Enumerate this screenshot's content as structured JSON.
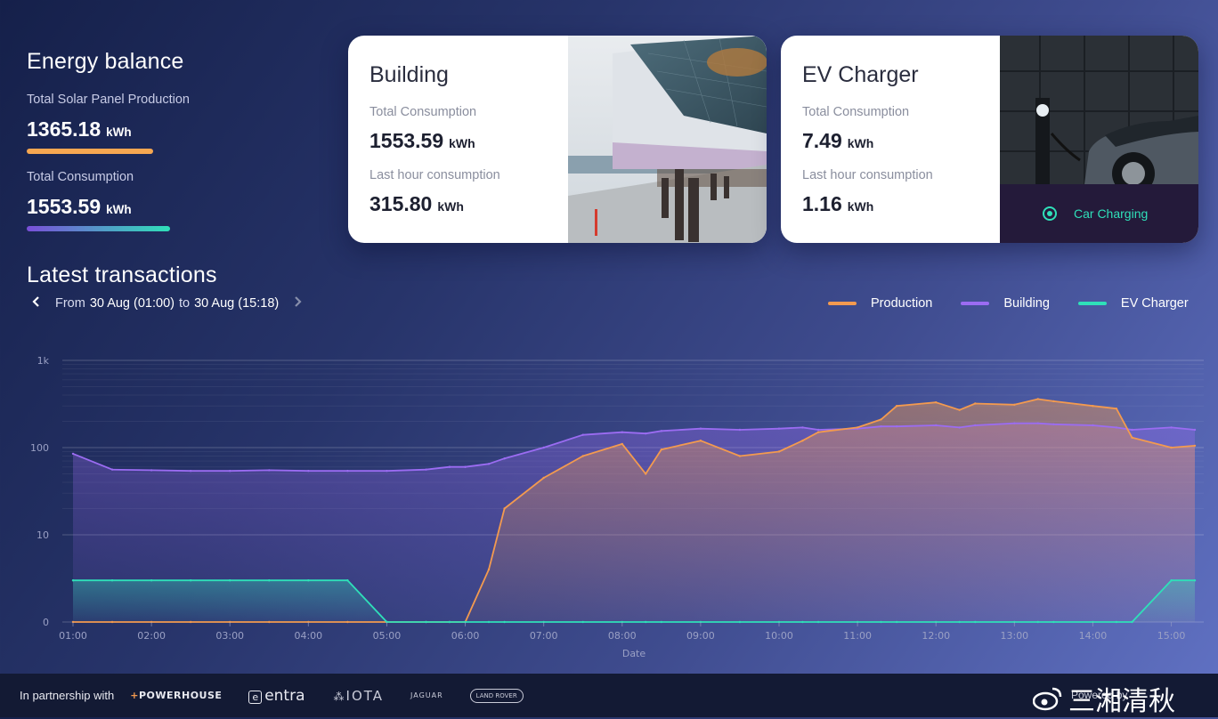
{
  "balance": {
    "title": "Energy balance",
    "production_label": "Total Solar Panel Production",
    "production_value": "1365.18",
    "production_unit": "kWh",
    "consumption_label": "Total Consumption",
    "consumption_value": "1553.59",
    "consumption_unit": "kWh"
  },
  "building_card": {
    "title": "Building",
    "total_label": "Total Consumption",
    "total_value": "1553.59",
    "total_unit": "kWh",
    "hour_label": "Last hour consumption",
    "hour_value": "315.80",
    "hour_unit": "kWh"
  },
  "ev_card": {
    "title": "EV Charger",
    "total_label": "Total Consumption",
    "total_value": "7.49",
    "total_unit": "kWh",
    "hour_label": "Last hour consumption",
    "hour_value": "1.16",
    "hour_unit": "kWh",
    "status": "Car Charging"
  },
  "transactions": {
    "title": "Latest transactions",
    "range_prefix": "From",
    "range_from": "30 Aug (01:00)",
    "range_mid": "to",
    "range_to": "30 Aug (15:18)"
  },
  "legend": [
    {
      "name": "Production",
      "color": "#f39a4f"
    },
    {
      "name": "Building",
      "color": "#9b6cf2"
    },
    {
      "name": "EV Charger",
      "color": "#2fe0b9"
    }
  ],
  "chart_data": {
    "type": "line",
    "xlabel": "Date",
    "y_scale": "log",
    "yticks": [
      "1k",
      "100",
      "10",
      "0"
    ],
    "xticks": [
      "01:00",
      "02:00",
      "03:00",
      "04:00",
      "05:00",
      "06:00",
      "07:00",
      "08:00",
      "09:00",
      "10:00",
      "11:00",
      "12:00",
      "13:00",
      "14:00",
      "15:00"
    ],
    "x_hours": [
      1,
      1.5,
      2,
      2.5,
      3,
      3.5,
      4,
      4.5,
      5,
      5.5,
      5.8,
      6,
      6.3,
      6.5,
      7,
      7.5,
      8,
      8.3,
      8.5,
      9,
      9.5,
      10,
      10.3,
      10.5,
      11,
      11.3,
      11.5,
      12,
      12.3,
      12.5,
      13,
      13.3,
      13.5,
      14,
      14.3,
      14.5,
      15,
      15.3
    ],
    "series": [
      {
        "name": "Production",
        "values": [
          0,
          0,
          0,
          0,
          0,
          0,
          0,
          0,
          0,
          0,
          0,
          0.2,
          4,
          20,
          45,
          80,
          110,
          50,
          95,
          120,
          80,
          90,
          120,
          150,
          170,
          210,
          300,
          330,
          270,
          320,
          310,
          360,
          340,
          300,
          280,
          130,
          100,
          105
        ]
      },
      {
        "name": "Building",
        "values": [
          85,
          56,
          55,
          54,
          54,
          55,
          54,
          54,
          54,
          56,
          60,
          60,
          65,
          75,
          100,
          140,
          150,
          145,
          155,
          165,
          160,
          165,
          170,
          160,
          165,
          175,
          175,
          180,
          170,
          180,
          190,
          190,
          185,
          180,
          170,
          160,
          170,
          160
        ]
      },
      {
        "name": "EV Charger",
        "values": [
          3,
          3,
          3,
          3,
          3,
          3,
          3,
          3,
          0,
          0,
          1,
          0,
          0,
          0,
          0,
          0,
          0,
          1,
          0,
          0,
          0,
          0,
          0.5,
          0,
          0,
          0,
          0,
          0,
          0,
          0,
          0,
          0,
          0,
          0,
          0,
          0,
          3,
          3
        ]
      }
    ]
  },
  "footer": {
    "partnership_label": "In partnership with",
    "logos": [
      "POWERHOUSE",
      "entra",
      "IOTA",
      "JAGUAR",
      "LAND ROVER"
    ],
    "powered_label": "Powered by",
    "watermark": "三湘清秋"
  }
}
